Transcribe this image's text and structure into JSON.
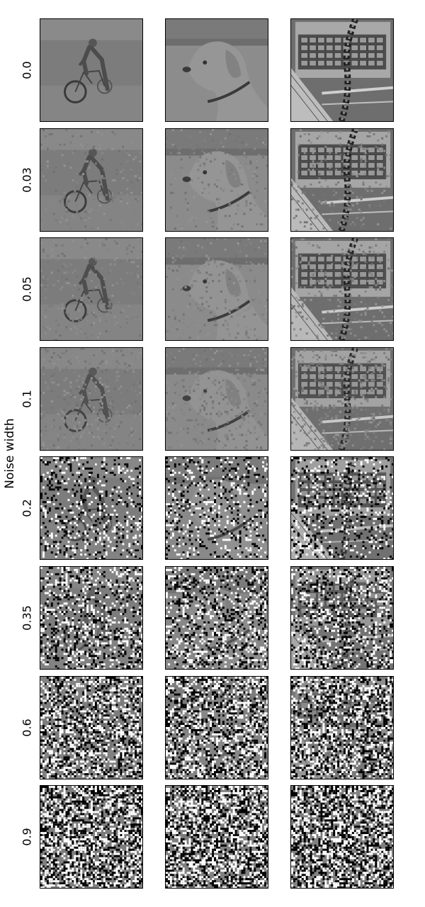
{
  "figure": {
    "y_axis_label": "Noise width",
    "noise_widths": [
      "0.0",
      "0.03",
      "0.05",
      "0.1",
      "0.2",
      "0.35",
      "0.6",
      "0.9"
    ],
    "noise_values": [
      0.0,
      0.03,
      0.05,
      0.1,
      0.2,
      0.35,
      0.6,
      0.9
    ],
    "columns": [
      {
        "subject": "bicycle-rider-icon"
      },
      {
        "subject": "dog-on-beach-icon"
      },
      {
        "subject": "keyboard-and-snake-icon"
      }
    ]
  }
}
